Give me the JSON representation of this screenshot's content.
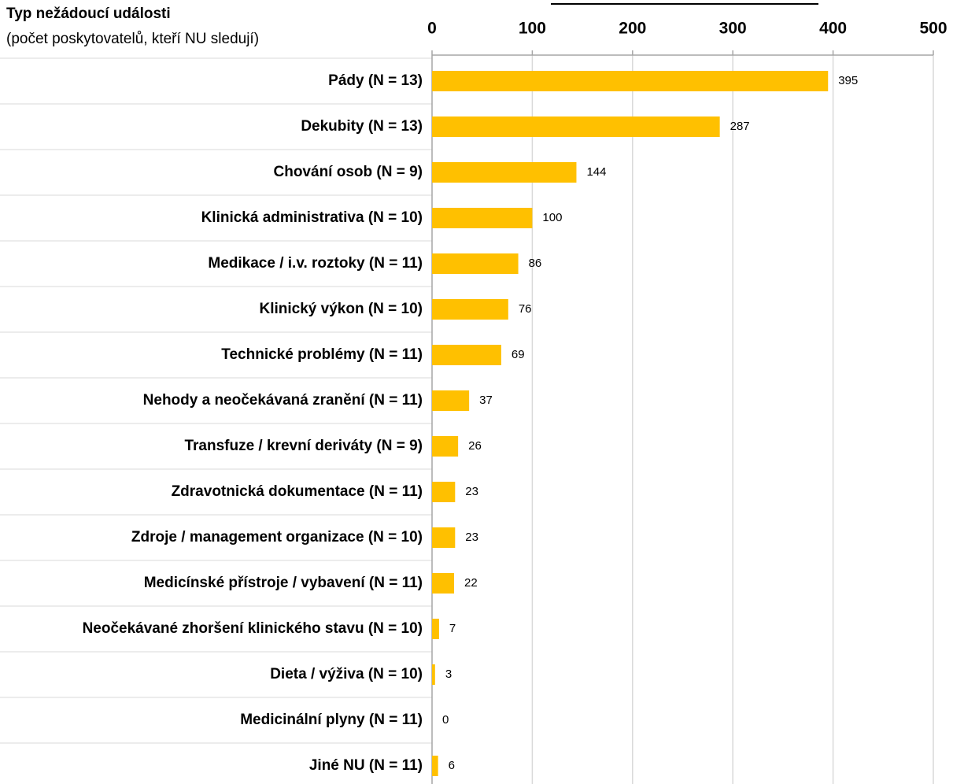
{
  "chart_data": {
    "type": "bar",
    "orientation": "horizontal",
    "ylabel": "Typ nežádoucí události",
    "ylabel_note": "(počet poskytovatelů, kteří NU sledují)",
    "categories": [
      "Pády (N = 13)",
      "Dekubity (N = 13)",
      "Chování osob (N = 9)",
      "Klinická administrativa (N = 10)",
      "Medikace / i.v. roztoky (N = 11)",
      "Klinický výkon (N = 10)",
      "Technické problémy (N = 11)",
      "Nehody a neočekávaná zranění (N = 11)",
      "Transfuze / krevní deriváty (N = 9)",
      "Zdravotnická dokumentace (N = 11)",
      "Zdroje / management organizace (N = 10)",
      "Medicínské přístroje / vybavení (N = 11)",
      "Neočekávané zhoršení klinického stavu (N = 10)",
      "Dieta / výživa (N = 10)",
      "Medicinální plyny (N = 11)",
      "Jiné NU (N = 11)"
    ],
    "values": [
      395,
      287,
      144,
      100,
      86,
      76,
      69,
      37,
      26,
      23,
      23,
      22,
      7,
      3,
      0,
      6
    ],
    "color": "#ffc000",
    "xlim": [
      0,
      500
    ],
    "xticks": [
      0,
      100,
      200,
      300,
      400,
      500
    ],
    "grid": true
  }
}
